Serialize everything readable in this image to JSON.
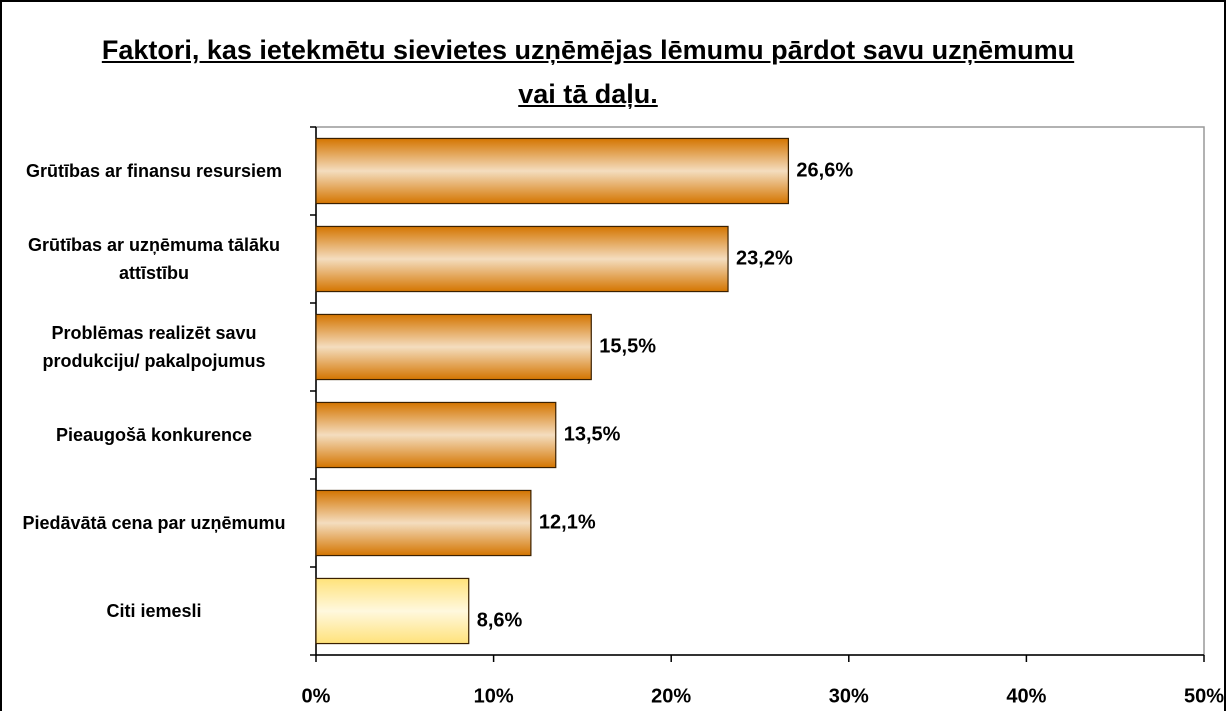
{
  "chart_data": {
    "type": "bar",
    "orientation": "horizontal",
    "title": "Faktori, kas ietekmētu sievietes uzņēmējas lēmumu pārdot savu uzņēmumu vai tā daļu.",
    "categories": [
      "Grūtības ar finansu resursiem",
      "Grūtības ar uzņēmuma tālāku attīstību",
      "Problēmas realizēt savu produkciju/ pakalpojumus",
      "Pieaugošā konkurence",
      "Piedāvātā cena par uzņēmumu",
      "Citi iemesli"
    ],
    "values": [
      26.6,
      23.2,
      15.5,
      13.5,
      12.1,
      8.6
    ],
    "value_labels": [
      "26,6%",
      "23,2%",
      "15,5%",
      "13,5%",
      "12,1%",
      "8,6%"
    ],
    "colors": [
      "#d47500",
      "#d47500",
      "#d47500",
      "#d47500",
      "#d47500",
      "#ffe27a"
    ],
    "xlim": [
      0,
      50
    ],
    "xticks": [
      {
        "value": 0,
        "label": "0%"
      },
      {
        "value": 10,
        "label": "10%"
      },
      {
        "value": 20,
        "label": "20%"
      },
      {
        "value": 30,
        "label": "30%"
      },
      {
        "value": 40,
        "label": "40%"
      },
      {
        "value": 50,
        "label": "50%"
      }
    ],
    "grid": false
  }
}
